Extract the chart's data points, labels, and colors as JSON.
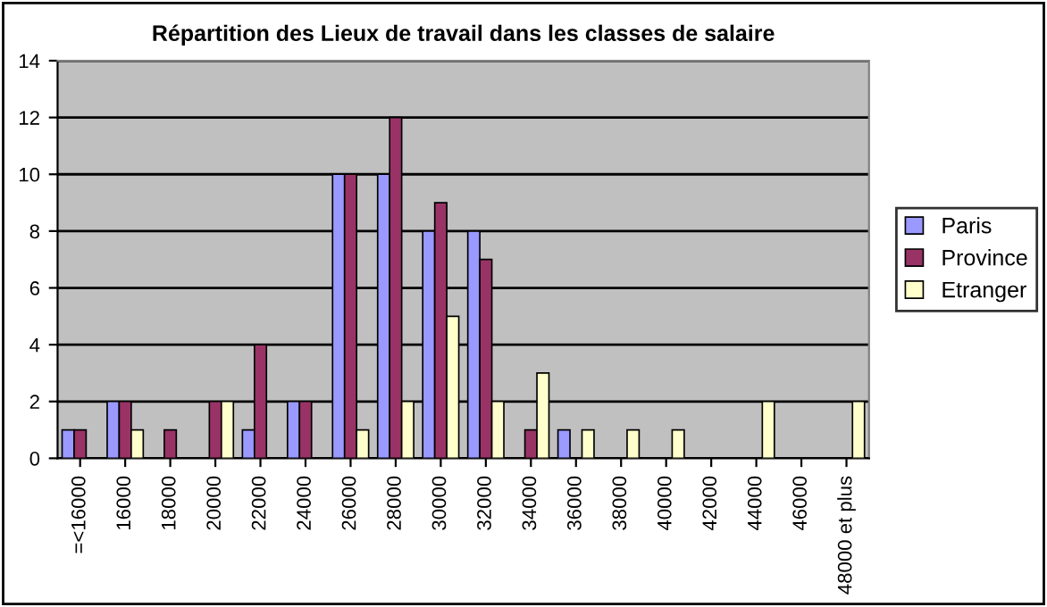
{
  "chart_data": {
    "type": "bar",
    "title": "Répartition des Lieux de travail dans les classes de salaire",
    "categories": [
      "=<16000",
      "16000",
      "18000",
      "20000",
      "22000",
      "24000",
      "26000",
      "28000",
      "30000",
      "32000",
      "34000",
      "36000",
      "38000",
      "40000",
      "42000",
      "44000",
      "46000",
      "48000 et plus"
    ],
    "series": [
      {
        "name": "Paris",
        "color": "#9999ff",
        "values": [
          1,
          2,
          null,
          null,
          1,
          2,
          10,
          10,
          8,
          8,
          null,
          1,
          null,
          null,
          null,
          null,
          null,
          null
        ]
      },
      {
        "name": "Province",
        "color": "#993366",
        "values": [
          1,
          2,
          1,
          2,
          4,
          2,
          10,
          12,
          9,
          7,
          1,
          null,
          null,
          null,
          null,
          null,
          null,
          null
        ]
      },
      {
        "name": "Etranger",
        "color": "#ffffcc",
        "values": [
          null,
          1,
          null,
          2,
          null,
          null,
          1,
          2,
          5,
          2,
          3,
          1,
          1,
          1,
          null,
          2,
          null,
          2
        ]
      }
    ],
    "ylim": [
      0,
      14
    ],
    "yticks": [
      0,
      2,
      4,
      6,
      8,
      10,
      12,
      14
    ],
    "grid": "y",
    "legend": "right"
  }
}
